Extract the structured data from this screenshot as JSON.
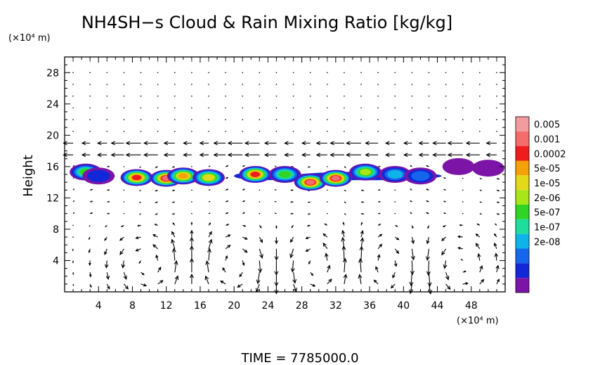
{
  "chart_data": {
    "type": "heatmap",
    "title": "NH4SH−s Cloud & Rain Mixing Ratio [kg/kg]",
    "ylabel": "Height",
    "y_unit": "(×10⁴ m)",
    "x_unit": "(×10⁴ m)",
    "xlim": [
      0,
      52
    ],
    "ylim": [
      0,
      30
    ],
    "xticks": [
      "4",
      "8",
      "12",
      "16",
      "20",
      "24",
      "28",
      "32",
      "36",
      "40",
      "44",
      "48"
    ],
    "yticks": [
      "4",
      "8",
      "12",
      "16",
      "20",
      "24",
      "28"
    ],
    "xtick_values": [
      4,
      8,
      12,
      16,
      20,
      24,
      28,
      32,
      36,
      40,
      44,
      48
    ],
    "ytick_values": [
      4,
      8,
      12,
      16,
      20,
      24,
      28
    ],
    "colorbar": {
      "labels": [
        "0.005",
        "0.001",
        "0.0002",
        "5e-05",
        "1e-05",
        "2e-06",
        "5e-07",
        "1e-07",
        "2e-08"
      ],
      "colors": [
        "#f39ca0",
        "#f46c6c",
        "#ee1c1c",
        "#f5a20a",
        "#e3d81a",
        "#a8e619",
        "#2fd424",
        "#1fdd9c",
        "#10b3e9",
        "#1566ea",
        "#1228d8",
        "#7d14a8"
      ]
    },
    "cloud_band_height_range": [
      13,
      16.5
    ],
    "cloud_patches": [
      {
        "x": 2.5,
        "y": 15.3,
        "level": 6
      },
      {
        "x": 4.0,
        "y": 14.8,
        "level": 10
      },
      {
        "x": 8.5,
        "y": 14.6,
        "level": 2
      },
      {
        "x": 12.0,
        "y": 14.5,
        "level": 1
      },
      {
        "x": 14.0,
        "y": 14.8,
        "level": 3
      },
      {
        "x": 17.0,
        "y": 14.6,
        "level": 4
      },
      {
        "x": 22.5,
        "y": 15.0,
        "level": 2
      },
      {
        "x": 26.0,
        "y": 15.0,
        "level": 6
      },
      {
        "x": 29.0,
        "y": 14.0,
        "level": 1
      },
      {
        "x": 32.0,
        "y": 14.5,
        "level": 1
      },
      {
        "x": 35.5,
        "y": 15.3,
        "level": 5
      },
      {
        "x": 39.0,
        "y": 15.0,
        "level": 8
      },
      {
        "x": 42.0,
        "y": 14.8,
        "level": 9
      },
      {
        "x": 46.5,
        "y": 16.0,
        "level": 11
      },
      {
        "x": 50.0,
        "y": 15.8,
        "level": 11
      }
    ]
  },
  "time_label": "TIME = 7785000.0"
}
